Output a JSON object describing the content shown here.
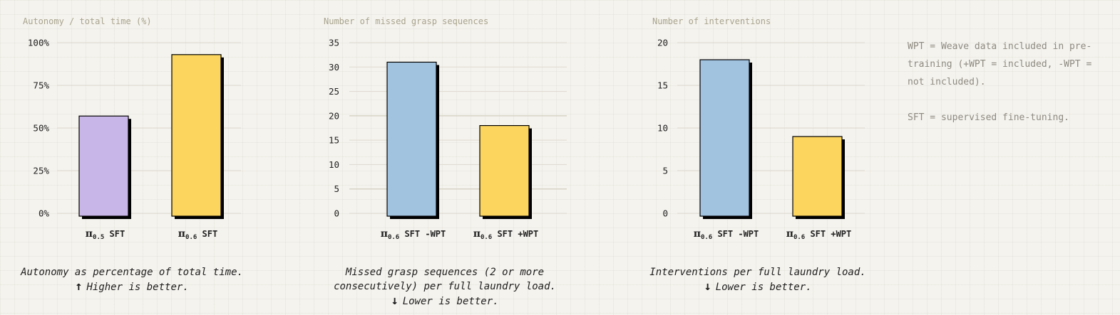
{
  "chart_data": [
    {
      "type": "bar",
      "title": "Autonomy / total time (%)",
      "categories": [
        {
          "main": "π",
          "sub": "0.5",
          "rest": " SFT"
        },
        {
          "main": "π",
          "sub": "0.6",
          "rest": " SFT"
        }
      ],
      "values": [
        57,
        93
      ],
      "colors": [
        "#c9b6e8",
        "#fbd55e"
      ],
      "yticks": [
        "0%",
        "25%",
        "50%",
        "75%",
        "100%"
      ],
      "ylim": [
        0,
        100
      ],
      "caption": [
        "Autonomy as percentage of total time.",
        "Higher is better."
      ],
      "arrow": "↑"
    },
    {
      "type": "bar",
      "title": "Number of missed grasp sequences",
      "categories": [
        {
          "main": "π",
          "sub": "0.6",
          "rest": " SFT -WPT"
        },
        {
          "main": "π",
          "sub": "0.6",
          "rest": " SFT +WPT"
        }
      ],
      "values": [
        31,
        18
      ],
      "colors": [
        "#a2c3e0",
        "#fbd55e"
      ],
      "yticks": [
        "0",
        "5",
        "10",
        "15",
        "20",
        "25",
        "30",
        "35"
      ],
      "ylim": [
        0,
        35
      ],
      "caption": [
        "Missed grasp sequences (2 or more",
        "consecutively) per full laundry load.",
        "Lower is better."
      ],
      "arrow": "↓"
    },
    {
      "type": "bar",
      "title": "Number of interventions",
      "categories": [
        {
          "main": "π",
          "sub": "0.6",
          "rest": " SFT -WPT"
        },
        {
          "main": "π",
          "sub": "0.6",
          "rest": " SFT +WPT"
        }
      ],
      "values": [
        18,
        9
      ],
      "colors": [
        "#a2c3e0",
        "#fbd55e"
      ],
      "yticks": [
        "0",
        "5",
        "10",
        "15",
        "20"
      ],
      "ylim": [
        0,
        20
      ],
      "caption": [
        "Interventions per full laundry load.",
        "Lower is better."
      ],
      "arrow": "↓"
    }
  ],
  "notes": {
    "wpt": "WPT = Weave data included in pre-training (+WPT = included, -WPT = not included).",
    "sft": "SFT = supervised fine-tuning."
  }
}
